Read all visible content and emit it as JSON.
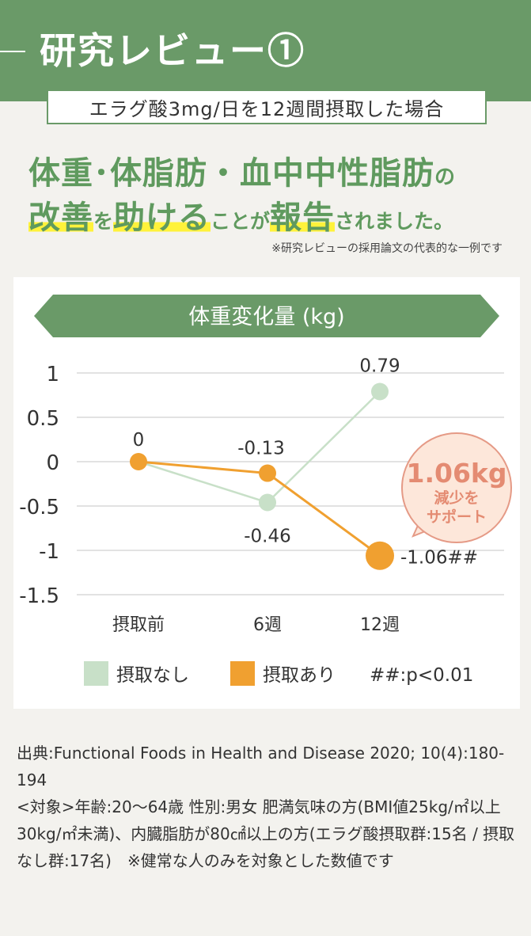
{
  "header": {
    "title": "研究レビュー①"
  },
  "subtitle": "エラグ酸3mg/日を12週間摂取した場合",
  "headline": {
    "line1_part1": "体重",
    "line1_dot1": "･",
    "line1_part2": "体脂肪",
    "line1_dot2": "・",
    "line1_part3": "血中中性脂肪",
    "line1_no": "の",
    "line2_big1": "改善",
    "line2_small1": "を",
    "line2_big2": "助ける",
    "line2_small2": "ことが",
    "line2_big3": "報告",
    "line2_small3": "されました。"
  },
  "note": "※研究レビューの採用論文の代表的な一例です",
  "chart_data": {
    "type": "line",
    "title": "体重変化量 (kg)",
    "categories": [
      "摂取前",
      "6週",
      "12週"
    ],
    "ylim": [
      -1.5,
      1
    ],
    "yticks": [
      "1",
      "0.5",
      "0",
      "-0.5",
      "-1",
      "-1.5"
    ],
    "series": [
      {
        "name": "摂取なし",
        "color": "#c8e0c8",
        "values": [
          0,
          -0.46,
          0.79
        ],
        "labels": [
          "",
          "-0.46",
          "0.79"
        ]
      },
      {
        "name": "摂取あり",
        "color": "#f0a030",
        "values": [
          0,
          -0.13,
          -1.06
        ],
        "labels": [
          "0",
          "-0.13",
          "-1.06##"
        ]
      }
    ],
    "significance_note": "##:p<0.01",
    "callout": {
      "value": "1.06kg",
      "line1": "減少を",
      "line2": "サポート"
    }
  },
  "source": {
    "line1": "出典:Functional Foods in Health and Disease 2020; 10(4):180-194",
    "line2": "<対象>年齢:20〜64歳 性別:男女 肥満気味の方(BMI値25kg/㎡以上30kg/㎡未満)、内臓脂肪が80㎠以上の方(エラグ酸摂取群:15名 / 摂取なし群:17名)　※健常な人のみを対象とした数値です"
  }
}
